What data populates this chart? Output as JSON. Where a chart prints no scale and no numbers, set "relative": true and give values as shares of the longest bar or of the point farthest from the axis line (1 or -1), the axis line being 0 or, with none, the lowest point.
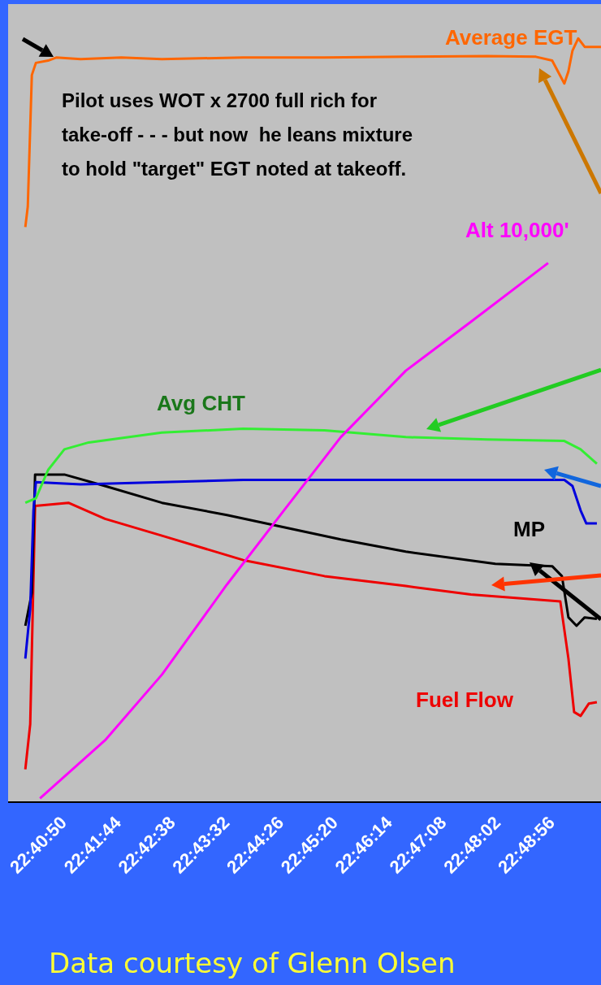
{
  "chart_data": {
    "type": "line",
    "relative": true,
    "marker": "none",
    "line_style": "solid",
    "xlim": [
      22.665,
      22.829
    ],
    "xticks": [
      {
        "value": 22.665556,
        "label": null
      },
      {
        "value": 22.680556,
        "label": "22:40:50"
      },
      {
        "value": 22.695556,
        "label": "22:41:44"
      },
      {
        "value": 22.710556,
        "label": "22:42:38"
      },
      {
        "value": 22.725556,
        "label": "22:43:32"
      },
      {
        "value": 22.740556,
        "label": "22:44:26"
      },
      {
        "value": 22.755556,
        "label": "22:45:20"
      },
      {
        "value": 22.770556,
        "label": "22:46:14"
      },
      {
        "value": 22.785556,
        "label": "22:47:08"
      },
      {
        "value": 22.800556,
        "label": "22:48:02"
      },
      {
        "value": 22.815556,
        "label": "22:48:56"
      }
    ],
    "series": [
      {
        "name": "Average EGT",
        "color": "#ff6600",
        "x": [
          22.66976,
          22.67044,
          22.67156,
          22.67268,
          22.67606,
          22.67831,
          22.68505,
          22.6963,
          22.70754,
          22.73003,
          22.75252,
          22.77501,
          22.7975,
          22.81099,
          22.81549,
          22.81886,
          22.81999,
          22.82111,
          22.82269,
          22.82449,
          22.82898
        ],
        "values": [
          0.753,
          0.78,
          0.952,
          0.968,
          0.971,
          0.975,
          0.973,
          0.975,
          0.973,
          0.975,
          0.975,
          0.976,
          0.977,
          0.976,
          0.971,
          0.941,
          0.957,
          0.984,
          1,
          0.989,
          0.989
        ]
      },
      {
        "name": "Alt 10,000'",
        "color": "#ff00ff",
        "x": [
          22.67381,
          22.6918,
          22.70754,
          22.72553,
          22.74128,
          22.75702,
          22.77501,
          22.793,
          22.81437
        ],
        "values": [
          0.005,
          0.081,
          0.167,
          0.285,
          0.382,
          0.478,
          0.565,
          0.629,
          0.706
        ]
      },
      {
        "name": "Avg CHT",
        "color": "#33ee33",
        "x": [
          22.66976,
          22.67268,
          22.67606,
          22.68056,
          22.6873,
          22.70754,
          22.73003,
          22.75252,
          22.77501,
          22.7975,
          22.81886,
          22.82336,
          22.82786
        ],
        "values": [
          0.392,
          0.398,
          0.435,
          0.462,
          0.471,
          0.484,
          0.489,
          0.487,
          0.478,
          0.475,
          0.473,
          0.462,
          0.443
        ]
      },
      {
        "color": "#0000dd",
        "x": [
          22.66976,
          22.67111,
          22.67201,
          22.67268,
          22.68505,
          22.70754,
          22.73003,
          22.81886,
          22.82111,
          22.82336,
          22.82494,
          22.82786
        ],
        "values": [
          0.188,
          0.253,
          0.382,
          0.419,
          0.416,
          0.419,
          0.422,
          0.422,
          0.414,
          0.382,
          0.365,
          0.365
        ]
      },
      {
        "name": "MP",
        "color": "#000000",
        "x": [
          22.66976,
          22.67156,
          22.67246,
          22.68056,
          22.6918,
          22.70754,
          22.72553,
          22.74128,
          22.75702,
          22.77501,
          22.79975,
          22.81549,
          22.81819,
          22.81999,
          22.82224,
          22.82449,
          22.82786
        ],
        "values": [
          0.231,
          0.274,
          0.429,
          0.429,
          0.414,
          0.392,
          0.376,
          0.36,
          0.344,
          0.328,
          0.312,
          0.309,
          0.296,
          0.242,
          0.231,
          0.242,
          0.24
        ]
      },
      {
        "name": "Fuel Flow",
        "color": "#ee0000",
        "x": [
          22.66976,
          22.67111,
          22.67246,
          22.68168,
          22.6918,
          22.70754,
          22.73003,
          22.75252,
          22.77501,
          22.793,
          22.81774,
          22.81999,
          22.82156,
          22.82336,
          22.82561,
          22.82786
        ],
        "values": [
          0.043,
          0.102,
          0.388,
          0.392,
          0.371,
          0.349,
          0.317,
          0.296,
          0.283,
          0.272,
          0.263,
          0.188,
          0.118,
          0.113,
          0.129,
          0.131
        ]
      }
    ],
    "annotations": [
      "Pilot uses WOT x 2700 full rich for\ntake-off - - - but now  he leans mixture\nto hold \"target\" EGT noted at takeoff.",
      "Data courtesy of Glenn Olsen"
    ]
  }
}
